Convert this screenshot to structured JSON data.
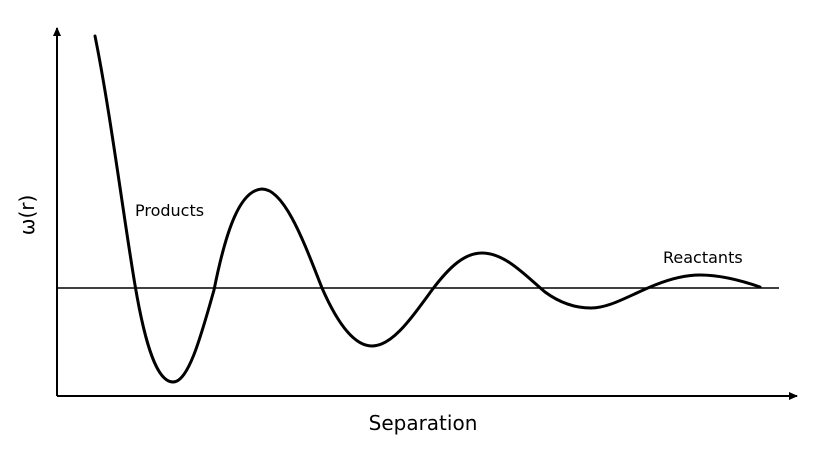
{
  "diagram": {
    "y_axis_label": "ω(r)",
    "x_axis_label": "Separation",
    "annotations": {
      "products": "Products",
      "reactants": "Reactants"
    },
    "curve": {
      "description_type": "damped oscillating potential",
      "baseline_level": 0
    },
    "colors": {
      "line": "#000000",
      "background": "#ffffff"
    }
  }
}
